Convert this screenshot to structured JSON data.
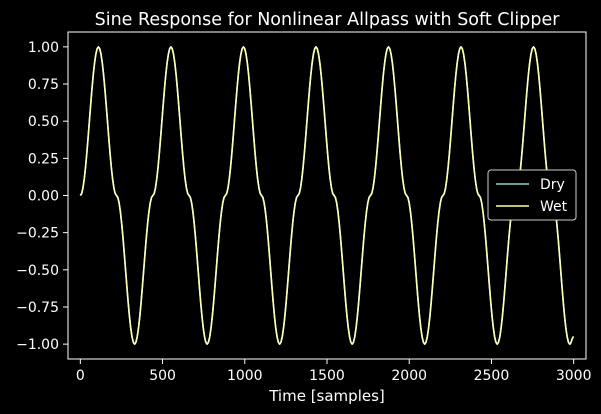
{
  "chart_data": {
    "type": "line",
    "title": "Sine Response for Nonlinear Allpass with Soft Clipper",
    "xlabel": "Time [samples]",
    "ylabel": "",
    "xlim": [
      -75,
      3075
    ],
    "ylim": [
      -1.1,
      1.1
    ],
    "x_ticks": [
      0,
      500,
      1000,
      1500,
      2000,
      2500,
      3000
    ],
    "y_ticks": [
      1.0,
      0.75,
      0.5,
      0.25,
      0.0,
      -0.25,
      -0.5,
      -0.75,
      -1.0
    ],
    "x_tick_labels": [
      "0",
      "500",
      "1000",
      "1500",
      "2000",
      "2500",
      "3000"
    ],
    "y_tick_labels": [
      "1.00",
      "0.75",
      "0.50",
      "0.25",
      "0.00",
      "−0.25",
      "−0.50",
      "−0.75",
      "−1.00"
    ],
    "grid": false,
    "legend": "center-right",
    "background": "#000000",
    "series": [
      {
        "name": "Dry",
        "color": "#8dd3c7",
        "x": [
          0,
          110,
          220,
          330,
          441,
          551,
          661,
          771,
          882,
          992,
          1102,
          1212,
          1323,
          1433,
          1543,
          1653,
          1764,
          1874,
          1984,
          2094,
          2205,
          2315,
          2425,
          2535,
          2646,
          2756,
          2866,
          2976,
          3000
        ],
        "y": [
          0.0,
          1.0,
          0.0,
          -1.0,
          0.0,
          1.0,
          0.0,
          -1.0,
          0.0,
          1.0,
          0.0,
          -1.0,
          0.0,
          1.0,
          0.0,
          -1.0,
          0.0,
          1.0,
          0.0,
          -1.0,
          0.0,
          1.0,
          0.0,
          -1.0,
          0.0,
          1.0,
          0.0,
          -1.0,
          -0.95
        ]
      },
      {
        "name": "Wet",
        "color": "#ffffb3",
        "x": [
          0,
          110,
          220,
          330,
          441,
          551,
          661,
          771,
          882,
          992,
          1102,
          1212,
          1323,
          1433,
          1543,
          1653,
          1764,
          1874,
          1984,
          2094,
          2205,
          2315,
          2425,
          2535,
          2646,
          2756,
          2866,
          2976,
          3000
        ],
        "y": [
          0.0,
          1.0,
          0.0,
          -1.0,
          0.0,
          1.0,
          0.0,
          -1.0,
          0.0,
          1.0,
          0.0,
          -1.0,
          0.0,
          1.0,
          0.0,
          -1.0,
          0.0,
          1.0,
          0.0,
          -1.0,
          0.0,
          1.0,
          0.0,
          -1.0,
          0.0,
          1.0,
          0.0,
          -1.0,
          -0.95
        ]
      }
    ]
  }
}
